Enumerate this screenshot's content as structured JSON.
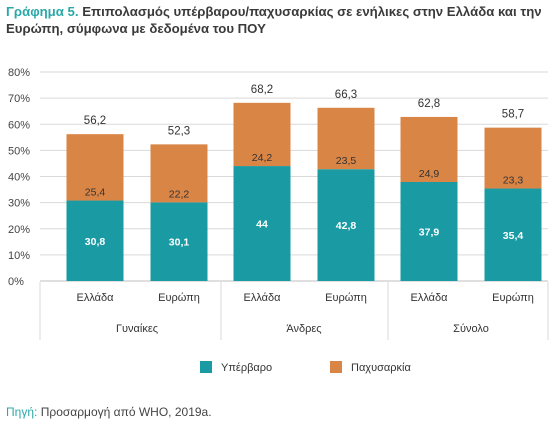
{
  "title": {
    "lead": "Γράφημα 5.",
    "text": "Επιπολασμός υπέρβαρου/παχυσαρκίας σε ενήλικες στην Ελλάδα και την Ευρώπη, σύμφωνα με δεδομένα του ΠΟΥ"
  },
  "source": {
    "label": "Πηγή:",
    "text": "Προσαρμογή από WHO, 2019a."
  },
  "colors": {
    "overweight": "#1a9ba3",
    "obesity": "#d88546",
    "grid": "#d9d9d9",
    "axis": "#bfbfbf"
  },
  "chart_data": {
    "type": "bar",
    "stacked": true,
    "ylim": [
      0,
      80
    ],
    "yticks": [
      "0%",
      "10%",
      "20%",
      "30%",
      "40%",
      "50%",
      "60%",
      "70%",
      "80%"
    ],
    "ytick_values": [
      0,
      10,
      20,
      30,
      40,
      50,
      60,
      70,
      80
    ],
    "grid": true,
    "legend_position": "bottom",
    "groups": [
      "Γυναίκες",
      "Άνδρες",
      "Σύνολο"
    ],
    "categories": [
      "Ελλάδα",
      "Ευρώπη",
      "Ελλάδα",
      "Ευρώπη",
      "Ελλάδα",
      "Ευρώπη"
    ],
    "totals": [
      "56,2",
      "52,3",
      "68,2",
      "66,3",
      "62,8",
      "58,7"
    ],
    "series": [
      {
        "name": "Υπέρβαρο",
        "values": [
          30.8,
          30.1,
          44,
          42.8,
          37.9,
          35.4
        ],
        "labels": [
          "30,8",
          "30,1",
          "44",
          "42,8",
          "37,9",
          "35,4"
        ]
      },
      {
        "name": "Παχυσαρκία",
        "values": [
          25.4,
          22.2,
          24.2,
          23.5,
          24.9,
          23.3
        ],
        "labels": [
          "25,4",
          "22,2",
          "24,2",
          "23,5",
          "24,9",
          "23,3"
        ]
      }
    ]
  }
}
